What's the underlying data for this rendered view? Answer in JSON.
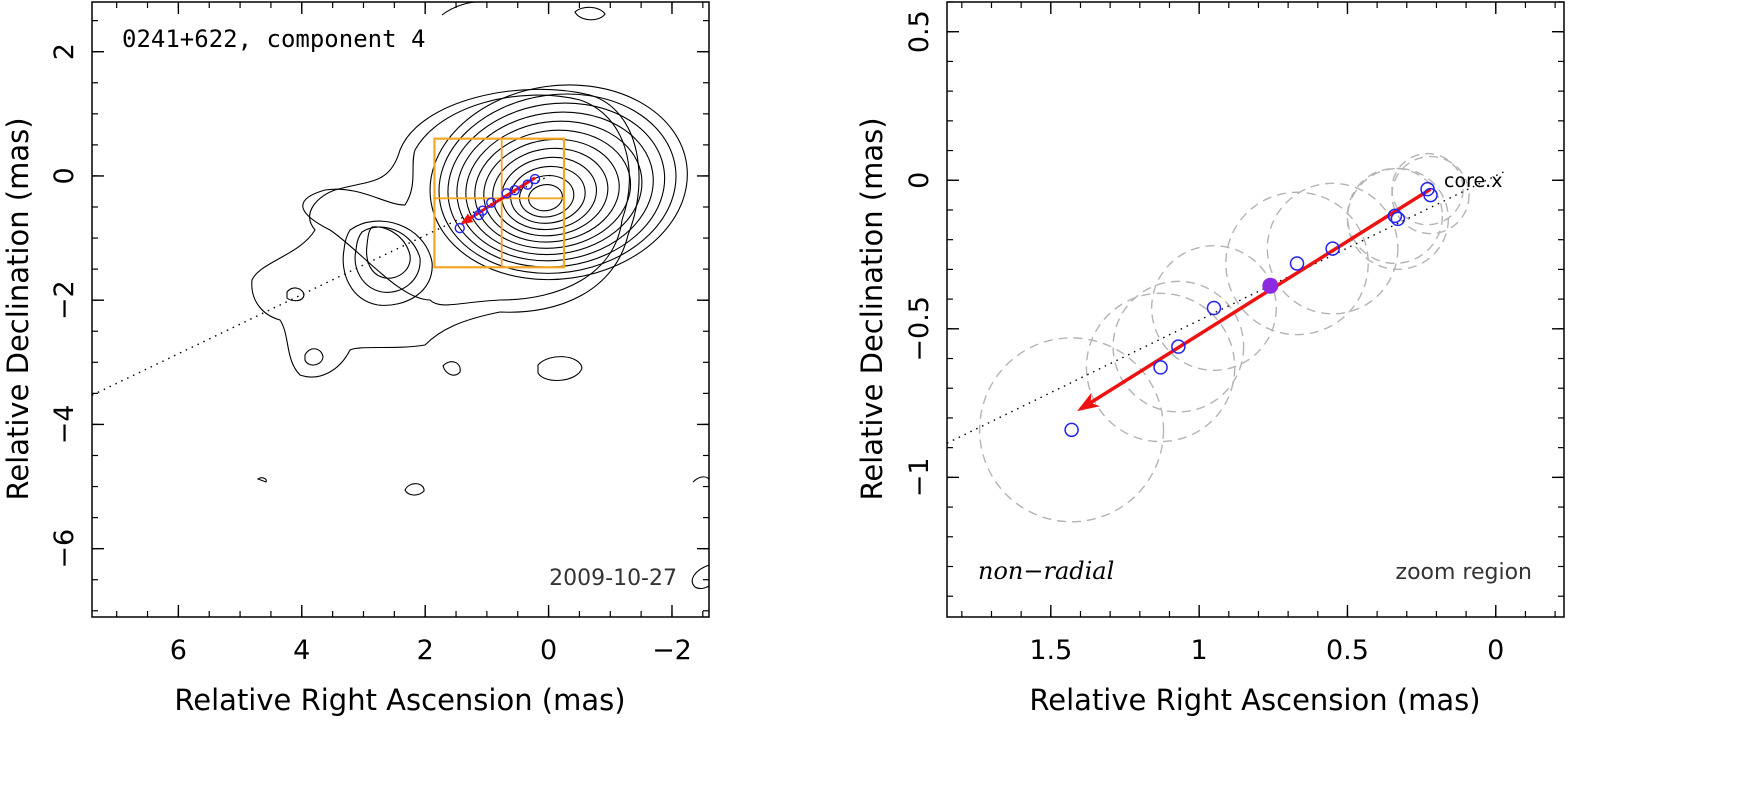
{
  "chart_data": [
    {
      "type": "scatter",
      "panel": "left",
      "title": "0241+622, component 4",
      "date": "2009-10-27",
      "xlabel": "Relative Right Ascension (mas)",
      "ylabel": "Relative Declination (mas)",
      "xlim": [
        7.4,
        -2.6
      ],
      "ylim": [
        -7.1,
        2.8
      ],
      "xticks": [
        6,
        4,
        2,
        0,
        -2
      ],
      "xtick_labels": [
        "6",
        "4",
        "2",
        "0",
        "−2"
      ],
      "yticks": [
        2,
        0,
        -2,
        -4,
        -6
      ],
      "ytick_labels": [
        "2",
        "0",
        "−2",
        "−4",
        "−6"
      ],
      "jet_axis_angle_deg": 148.5,
      "zoom_box_x": [
        1.85,
        -0.25
      ],
      "zoom_box_y": [
        0.6,
        -1.47
      ],
      "positions": [
        {
          "x": 0.22,
          "y": -0.05
        },
        {
          "x": 0.34,
          "y": -0.14
        },
        {
          "x": 0.55,
          "y": -0.23
        },
        {
          "x": 0.68,
          "y": -0.28
        },
        {
          "x": 0.93,
          "y": -0.43
        },
        {
          "x": 1.07,
          "y": -0.56
        },
        {
          "x": 1.13,
          "y": -0.63
        },
        {
          "x": 1.44,
          "y": -0.84
        }
      ],
      "vector": {
        "from": [
          0.22,
          -0.03
        ],
        "to": [
          1.4,
          -0.76
        ]
      },
      "contour_color": "#000000",
      "zoom_box_color": "#f5a623",
      "vector_color": "#ee1111",
      "position_color": "#2222ee"
    },
    {
      "type": "scatter",
      "panel": "right",
      "xlabel": "Relative Right Ascension (mas)",
      "ylabel": "Relative Declination (mas)",
      "xlim": [
        1.85,
        -0.23
      ],
      "ylim": [
        -1.47,
        0.6
      ],
      "xticks": [
        1.5,
        1,
        0.5,
        0
      ],
      "xtick_labels": [
        "1.5",
        "1",
        "0.5",
        "0"
      ],
      "yticks": [
        0.5,
        0,
        -0.5,
        -1
      ],
      "ytick_labels": [
        "0.5",
        "0",
        "−0.5",
        "−1"
      ],
      "annotation_mode": "non−radial",
      "annotation_region": "zoom region",
      "core_label": "core.x",
      "jet_axis_angle_deg": 148.5,
      "positions": [
        {
          "x": 0.23,
          "y": -0.03,
          "size": 0.12
        },
        {
          "x": 0.22,
          "y": -0.05,
          "size": 0.13
        },
        {
          "x": 0.34,
          "y": -0.12,
          "size": 0.16
        },
        {
          "x": 0.33,
          "y": -0.13,
          "size": 0.17
        },
        {
          "x": 0.55,
          "y": -0.23,
          "size": 0.22
        },
        {
          "x": 0.67,
          "y": -0.28,
          "size": 0.24
        },
        {
          "x": 0.95,
          "y": -0.43,
          "size": 0.21
        },
        {
          "x": 1.07,
          "y": -0.56,
          "size": 0.22
        },
        {
          "x": 1.13,
          "y": -0.63,
          "size": 0.25
        },
        {
          "x": 1.43,
          "y": -0.84,
          "size": 0.31
        }
      ],
      "mean_position": {
        "x": 0.76,
        "y": -0.355
      },
      "vector": {
        "from": [
          0.22,
          -0.03
        ],
        "to": [
          1.4,
          -0.77
        ]
      },
      "vector_color": "#ee1111",
      "position_color": "#2222ee",
      "mean_color": "#8a2be2",
      "size_circle_color": "#b4b4b4"
    }
  ]
}
